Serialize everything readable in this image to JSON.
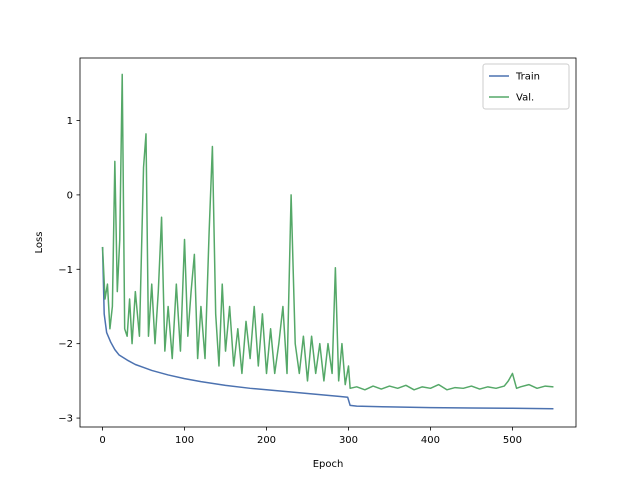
{
  "chart_data": {
    "type": "line",
    "title": "",
    "xlabel": "Epoch",
    "ylabel": "Loss",
    "xlim": [
      -27.5,
      577.5
    ],
    "ylim": [
      -3.12,
      1.84
    ],
    "xticks": [
      0,
      100,
      200,
      300,
      400,
      500
    ],
    "yticks": [
      -3,
      -2,
      -1,
      0,
      1
    ],
    "xtick_labels": [
      "0",
      "100",
      "200",
      "300",
      "400",
      "500"
    ],
    "ytick_labels": [
      "−3",
      "−2",
      "−1",
      "0",
      "1"
    ],
    "grid": false,
    "legend_position": "top-right",
    "series": [
      {
        "name": "Train",
        "color": "#4c72b0",
        "x": [
          0,
          2,
          5,
          10,
          15,
          20,
          30,
          40,
          50,
          60,
          80,
          100,
          120,
          150,
          180,
          200,
          230,
          250,
          270,
          290,
          299,
          302,
          310,
          350,
          400,
          450,
          500,
          550
        ],
        "y": [
          -0.7,
          -1.6,
          -1.85,
          -1.98,
          -2.08,
          -2.15,
          -2.22,
          -2.28,
          -2.32,
          -2.36,
          -2.42,
          -2.47,
          -2.51,
          -2.56,
          -2.6,
          -2.62,
          -2.65,
          -2.67,
          -2.69,
          -2.71,
          -2.72,
          -2.83,
          -2.84,
          -2.85,
          -2.86,
          -2.865,
          -2.868,
          -2.875
        ]
      },
      {
        "name": "Val.",
        "color": "#55a868",
        "x": [
          0,
          3,
          6,
          9,
          12,
          15,
          18,
          21,
          24,
          27,
          30,
          33,
          36,
          40,
          45,
          50,
          53,
          56,
          60,
          64,
          68,
          72,
          76,
          80,
          85,
          90,
          95,
          100,
          104,
          108,
          112,
          116,
          120,
          125,
          130,
          134,
          138,
          142,
          146,
          150,
          155,
          160,
          165,
          170,
          175,
          180,
          185,
          190,
          195,
          200,
          205,
          210,
          215,
          220,
          225,
          230,
          235,
          240,
          245,
          250,
          255,
          260,
          265,
          270,
          275,
          280,
          284,
          288,
          292,
          296,
          300,
          302,
          310,
          320,
          330,
          340,
          350,
          360,
          370,
          380,
          390,
          400,
          410,
          420,
          430,
          440,
          450,
          460,
          470,
          480,
          490,
          495,
          500,
          505,
          510,
          520,
          530,
          540,
          550
        ],
        "y": [
          -0.7,
          -1.4,
          -1.2,
          -1.8,
          -1.5,
          0.45,
          -1.3,
          -0.6,
          1.62,
          -1.8,
          -1.9,
          -1.4,
          -2.0,
          -1.3,
          -1.9,
          0.37,
          0.82,
          -1.9,
          -1.2,
          -2.0,
          -1.3,
          -0.3,
          -2.1,
          -1.5,
          -2.2,
          -1.2,
          -2.1,
          -0.6,
          -1.9,
          -1.3,
          -0.8,
          -2.2,
          -1.5,
          -2.2,
          -0.5,
          0.65,
          -1.6,
          -2.3,
          -1.2,
          -2.1,
          -1.5,
          -2.3,
          -1.8,
          -2.4,
          -1.7,
          -2.2,
          -1.5,
          -2.3,
          -1.6,
          -2.4,
          -1.8,
          -2.4,
          -2.0,
          -1.5,
          -2.4,
          0.0,
          -2.0,
          -2.4,
          -1.9,
          -2.5,
          -1.9,
          -2.4,
          -2.0,
          -2.5,
          -2.0,
          -2.4,
          -0.98,
          -2.5,
          -2.0,
          -2.55,
          -2.3,
          -2.6,
          -2.58,
          -2.62,
          -2.57,
          -2.61,
          -2.57,
          -2.6,
          -2.56,
          -2.62,
          -2.58,
          -2.6,
          -2.55,
          -2.62,
          -2.59,
          -2.6,
          -2.57,
          -2.61,
          -2.58,
          -2.6,
          -2.57,
          -2.5,
          -2.4,
          -2.6,
          -2.58,
          -2.55,
          -2.6,
          -2.57,
          -2.58
        ]
      }
    ]
  }
}
